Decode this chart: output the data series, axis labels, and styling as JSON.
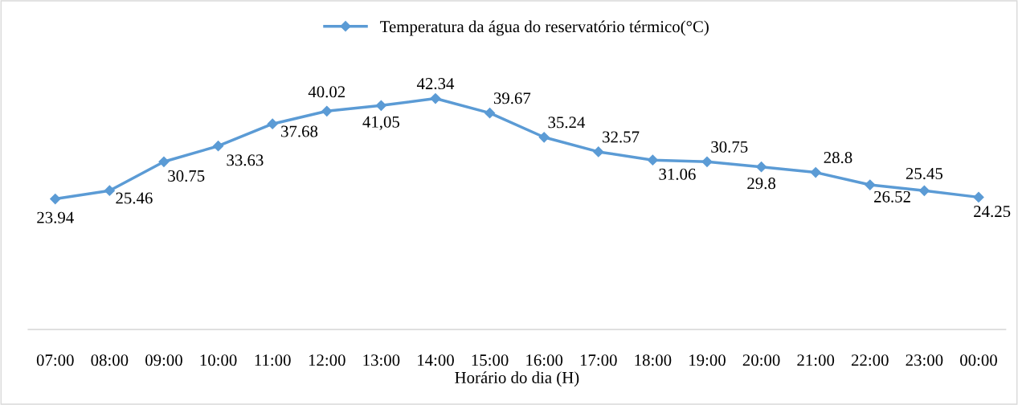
{
  "chart_data": {
    "type": "line",
    "xlabel": "Horário do dia (H)",
    "categories": [
      "07:00",
      "08:00",
      "09:00",
      "10:00",
      "11:00",
      "12:00",
      "13:00",
      "14:00",
      "15:00",
      "16:00",
      "17:00",
      "18:00",
      "19:00",
      "20:00",
      "21:00",
      "22:00",
      "23:00",
      "00:00"
    ],
    "series": [
      {
        "name": "Temperatura da água do reservatório térmico(°C)",
        "color": "#5b9bd5",
        "values": [
          23.94,
          25.46,
          30.75,
          33.63,
          37.68,
          40.02,
          41.05,
          42.34,
          39.67,
          35.24,
          32.57,
          31.06,
          30.75,
          29.8,
          28.8,
          26.52,
          25.45,
          24.25
        ],
        "value_labels": [
          "23.94",
          "25.46",
          "30.75",
          "33.63",
          "37.68",
          "40.02",
          "41,05",
          "42.34",
          "39.67",
          "35.24",
          "32.57",
          "31.06",
          "30.75",
          "29.8",
          "28.8",
          "26.52",
          "25.45",
          "24.25"
        ]
      }
    ],
    "legend": "top",
    "marker": "diamond",
    "line_style": "solid",
    "grid": false
  }
}
